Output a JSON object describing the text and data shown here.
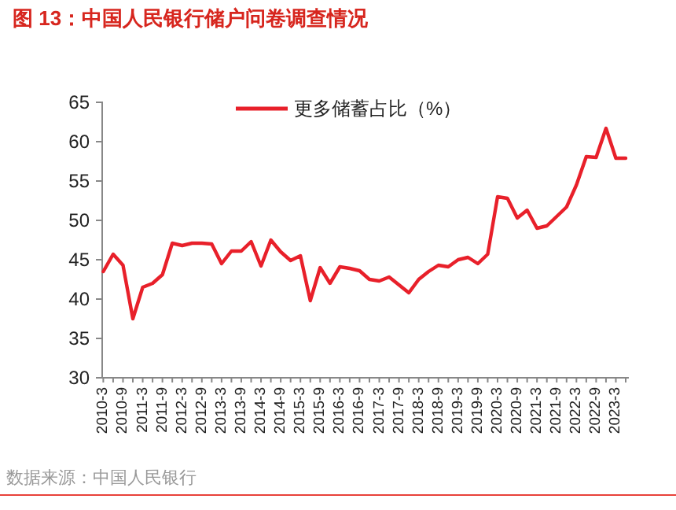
{
  "chart_data": {
    "type": "line",
    "title": "图 13：中国人民银行储户问卷调查情况",
    "annotations": [
      "数据来源：中国人民银行"
    ],
    "categories": [
      "2010-3",
      null,
      "2010-9",
      null,
      "2011-3",
      null,
      "2011-9",
      null,
      "2012-3",
      null,
      "2012-9",
      null,
      "2013-3",
      null,
      "2013-9",
      null,
      "2014-3",
      null,
      "2014-9",
      null,
      "2015-3",
      null,
      "2015-9",
      null,
      "2016-3",
      null,
      "2016-9",
      null,
      "2017-3",
      null,
      "2017-9",
      null,
      "2018-3",
      null,
      "2018-9",
      null,
      "2019-3",
      null,
      "2019-9",
      null,
      "2020-3",
      null,
      "2020-9",
      null,
      "2021-3",
      null,
      "2021-9",
      null,
      "2022-3",
      null,
      "2022-9",
      null,
      "2023-3",
      null
    ],
    "series": [
      {
        "name": "更多储蓄占比（%）",
        "color": "#e8202a",
        "values": [
          43.5,
          45.7,
          44.3,
          37.5,
          41.5,
          42,
          43.1,
          47.1,
          46.8,
          47.1,
          47.1,
          47,
          44.5,
          46.1,
          46.1,
          47.3,
          44.2,
          47.5,
          46,
          44.9,
          45.5,
          39.8,
          44,
          42,
          44.1,
          43.9,
          43.6,
          42.5,
          42.3,
          42.8,
          41.8,
          40.8,
          42.5,
          43.5,
          44.3,
          44.1,
          45,
          45.3,
          44.5,
          45.7,
          53,
          52.8,
          50.3,
          51.3,
          49,
          49.3,
          50.5,
          51.7,
          54.5,
          58.1,
          58,
          61.7,
          57.9,
          57.9
        ]
      }
    ],
    "ylim": [
      30,
      65
    ],
    "yticks": [
      30,
      35,
      40,
      45,
      50,
      55,
      60,
      65
    ],
    "grid": false,
    "legend": "top",
    "marker": "none",
    "line_style": "solid"
  }
}
